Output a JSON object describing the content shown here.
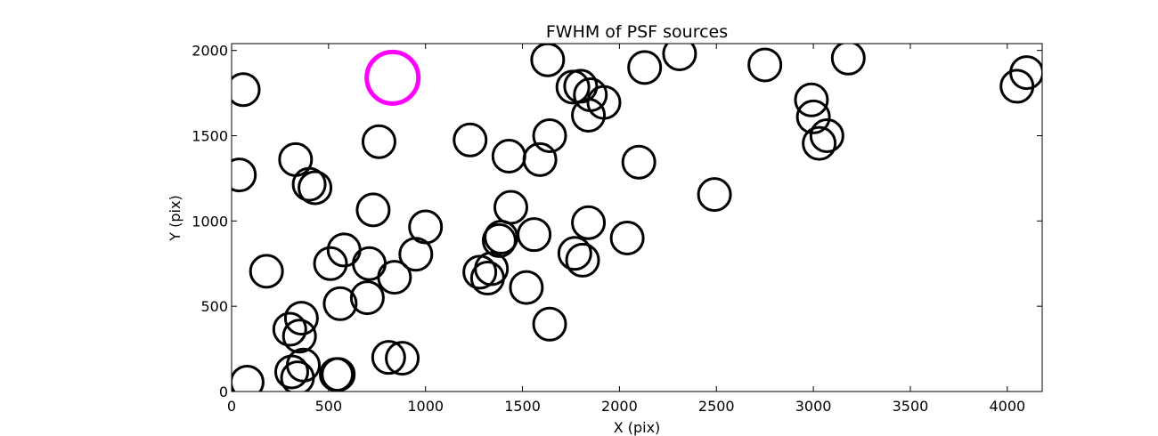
{
  "chart_data": {
    "type": "scatter",
    "title": "FWHM of PSF sources",
    "xlabel": "X (pix)",
    "ylabel": "Y (pix)",
    "xlim": [
      0,
      4180
    ],
    "ylim": [
      0,
      2040
    ],
    "xticks": [
      0,
      500,
      1000,
      1500,
      2000,
      2500,
      3000,
      3500,
      4000
    ],
    "yticks": [
      0,
      500,
      1000,
      1500,
      2000
    ],
    "grid": false,
    "marker": "open-circle",
    "colors": {
      "default": "#000000",
      "highlight": "#ff00ff"
    },
    "series": [
      {
        "color": "#000000",
        "points": [
          [
            60,
            1770
          ],
          [
            40,
            1270
          ],
          [
            80,
            55
          ],
          [
            180,
            705
          ],
          [
            300,
            365
          ],
          [
            310,
            115
          ],
          [
            330,
            1360
          ],
          [
            340,
            80
          ],
          [
            350,
            325
          ],
          [
            360,
            430
          ],
          [
            370,
            155
          ],
          [
            400,
            1215
          ],
          [
            430,
            1195
          ],
          [
            510,
            750
          ],
          [
            540,
            100
          ],
          [
            550,
            100
          ],
          [
            560,
            515
          ],
          [
            580,
            830
          ],
          [
            700,
            550
          ],
          [
            710,
            750
          ],
          [
            730,
            1065
          ],
          [
            760,
            1465
          ],
          [
            810,
            200
          ],
          [
            840,
            670
          ],
          [
            880,
            195
          ],
          [
            950,
            805
          ],
          [
            1000,
            965
          ],
          [
            1230,
            1475
          ],
          [
            1280,
            700
          ],
          [
            1320,
            665
          ],
          [
            1340,
            720
          ],
          [
            1380,
            885
          ],
          [
            1390,
            905
          ],
          [
            1430,
            1380
          ],
          [
            1440,
            1080
          ],
          [
            1520,
            610
          ],
          [
            1560,
            920
          ],
          [
            1590,
            1360
          ],
          [
            1640,
            395
          ],
          [
            1640,
            1500
          ],
          [
            1630,
            1945
          ],
          [
            1760,
            1785
          ],
          [
            1770,
            810
          ],
          [
            1800,
            1790
          ],
          [
            1810,
            770
          ],
          [
            1840,
            990
          ],
          [
            1840,
            1620
          ],
          [
            1850,
            1740
          ],
          [
            1920,
            1695
          ],
          [
            2040,
            900
          ],
          [
            2100,
            1345
          ],
          [
            2130,
            1900
          ],
          [
            2310,
            1980
          ],
          [
            2490,
            1155
          ],
          [
            2750,
            1915
          ],
          [
            2990,
            1710
          ],
          [
            3000,
            1610
          ],
          [
            3030,
            1455
          ],
          [
            3070,
            1500
          ],
          [
            3180,
            1955
          ],
          [
            4050,
            1790
          ],
          [
            4100,
            1870
          ]
        ]
      },
      {
        "color": "#ff00ff",
        "points": [
          [
            830,
            1840
          ]
        ]
      }
    ]
  }
}
